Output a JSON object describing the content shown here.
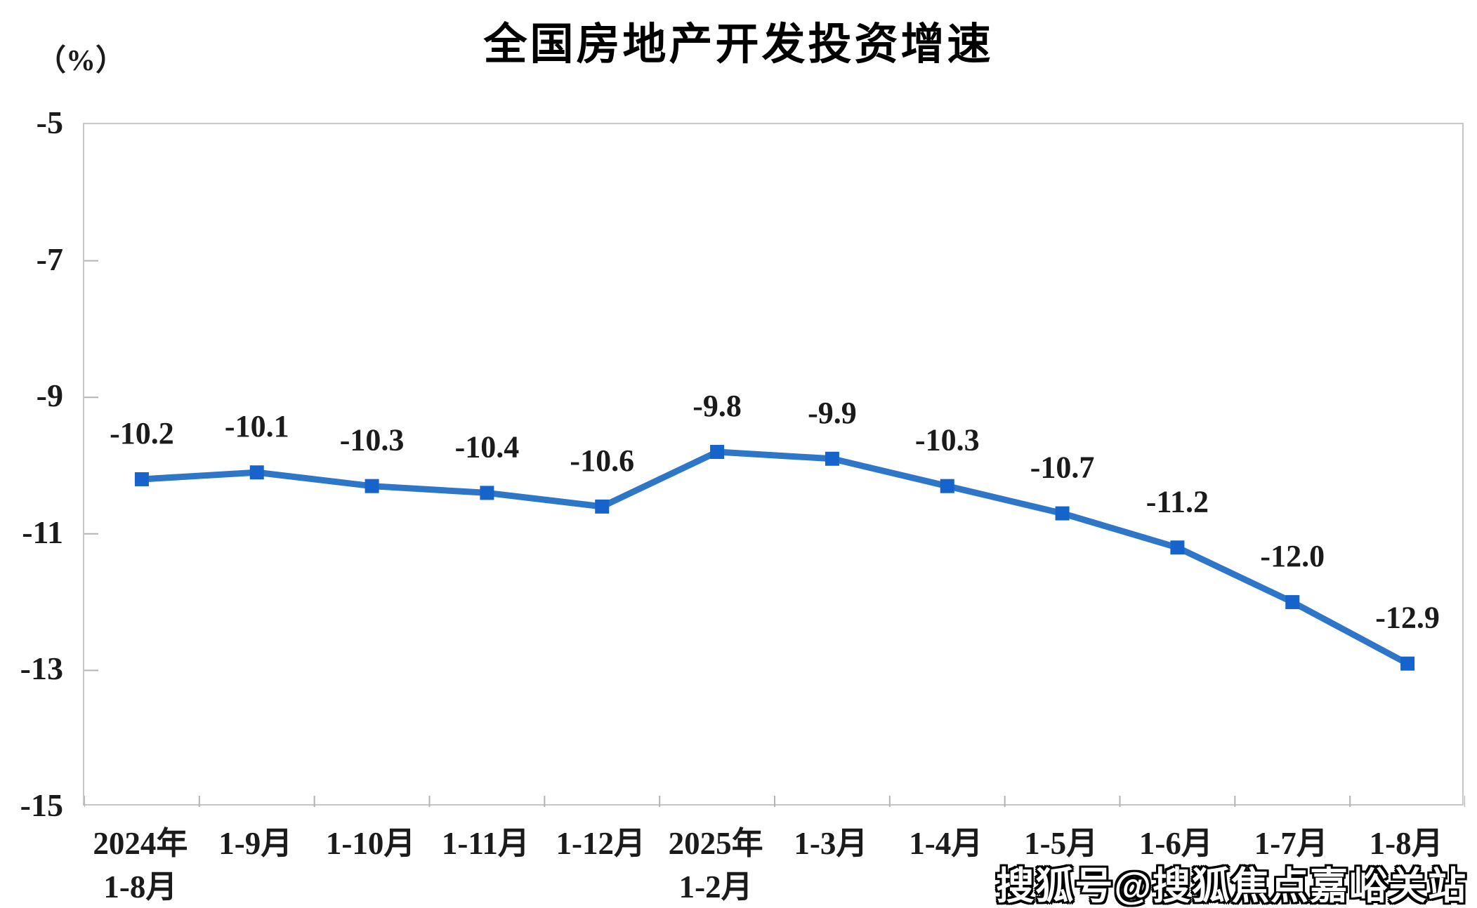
{
  "title": "全国房地产开发投资增速",
  "watermark": "搜狐号@搜狐焦点嘉峪关站",
  "chart_data": {
    "type": "line",
    "title": "全国房地产开发投资增速",
    "ylabel": "（%）",
    "xlabel": "",
    "categories": [
      "2024年\n1-8月",
      "1-9月",
      "1-10月",
      "1-11月",
      "1-12月",
      "2025年\n1-2月",
      "1-3月",
      "1-4月",
      "1-5月",
      "1-6月",
      "1-7月",
      "1-8月"
    ],
    "values": [
      -10.2,
      -10.1,
      -10.3,
      -10.4,
      -10.6,
      -9.8,
      -9.9,
      -10.3,
      -10.7,
      -11.2,
      -12.0,
      -12.9
    ],
    "data_labels": [
      "-10.2",
      "-10.1",
      "-10.3",
      "-10.4",
      "-10.6",
      "-9.8",
      "-9.9",
      "-10.3",
      "-10.7",
      "-11.2",
      "-12.0",
      "-12.9"
    ],
    "ylim": [
      -15,
      -5
    ],
    "y_ticks": [
      -5,
      -7,
      -9,
      -11,
      -13,
      -15
    ],
    "grid": false,
    "legend_position": "none",
    "marker": "square",
    "line_color": "#2e76c8",
    "marker_color": "#1563cb",
    "axis_color": "#c6c6c6",
    "tick_color": "#b3b3b3",
    "label_color": "#1b1b1b"
  }
}
